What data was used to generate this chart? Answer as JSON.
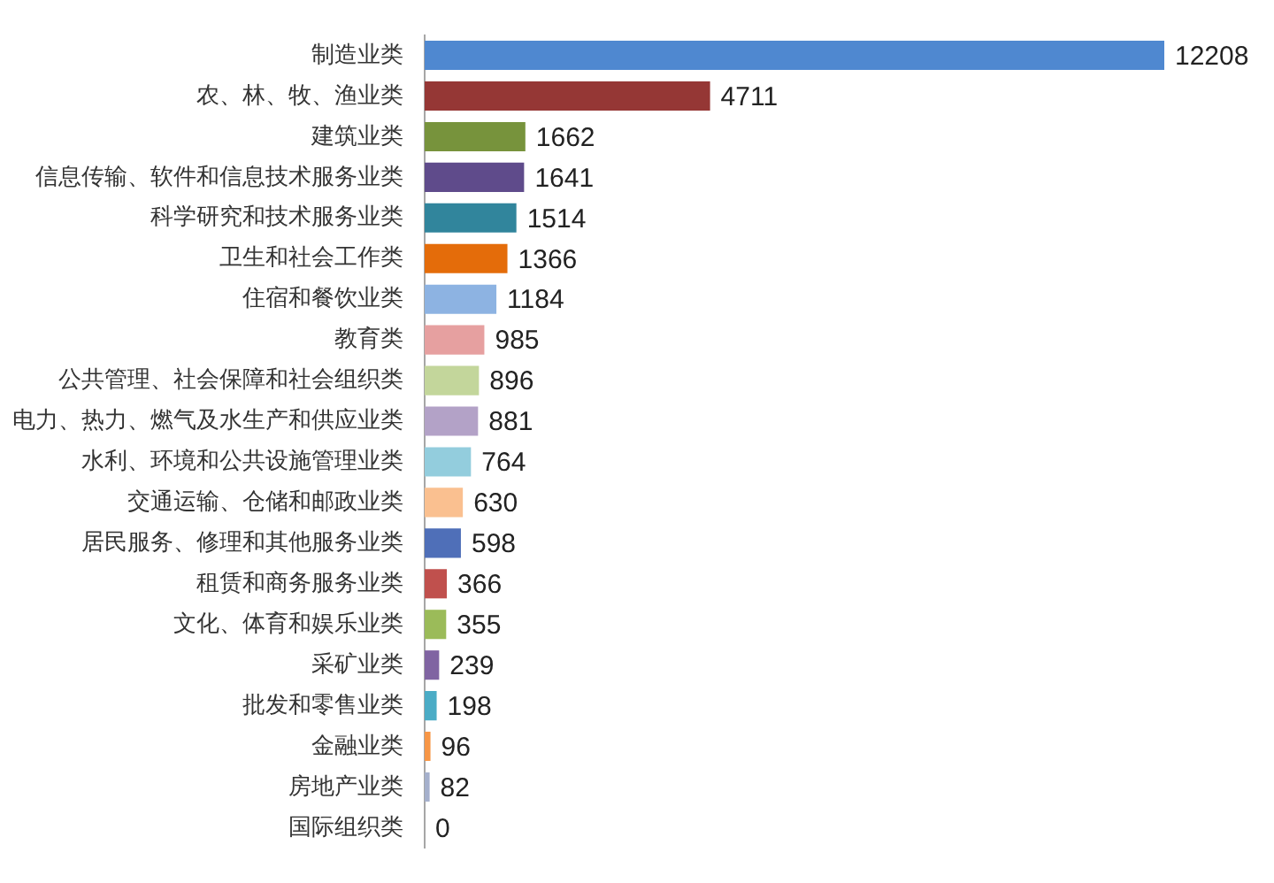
{
  "chart_data": {
    "type": "bar",
    "orientation": "horizontal",
    "categories": [
      "制造业类",
      "农、林、牧、渔业类",
      "建筑业类",
      "信息传输、软件和信息技术服务业类",
      "科学研究和技术服务业类",
      "卫生和社会工作类",
      "住宿和餐饮业类",
      "教育类",
      "公共管理、社会保障和社会组织类",
      "电力、热力、燃气及水生产和供应业类",
      "水利、环境和公共设施管理业类",
      "交通运输、仓储和邮政业类",
      "居民服务、修理和其他服务业类",
      "租赁和商务服务业类",
      "文化、体育和娱乐业类",
      "采矿业类",
      "批发和零售业类",
      "金融业类",
      "房地产业类",
      "国际组织类"
    ],
    "values": [
      12208,
      4711,
      1662,
      1641,
      1514,
      1366,
      1184,
      985,
      896,
      881,
      764,
      630,
      598,
      366,
      355,
      239,
      198,
      96,
      82,
      0
    ],
    "colors": [
      "#4f88d0",
      "#953735",
      "#77933c",
      "#5f4b8b",
      "#31859c",
      "#e46c0a",
      "#8db3e2",
      "#e6a0a0",
      "#c3d69b",
      "#b3a2c7",
      "#93cddd",
      "#fac090",
      "#4f6fb8",
      "#c0504d",
      "#9bbb59",
      "#8064a2",
      "#4bacc6",
      "#f79646",
      "#a5b0cc",
      "#4f81bd"
    ],
    "tick_labels": "y",
    "data_labels": true
  }
}
